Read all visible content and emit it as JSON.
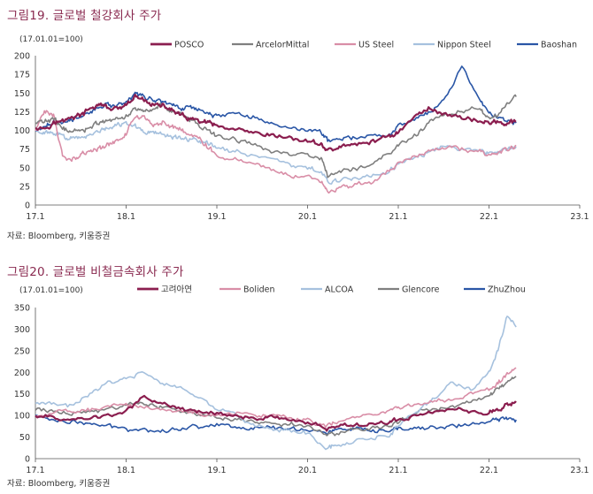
{
  "charts": [
    {
      "fig_title": "그림19. 글로벌 철강회사 주가",
      "base_note": "(17.01.01=100)",
      "source": "자료: Bloomberg, 키움증권"
    },
    {
      "fig_title": "그림20. 글로벌 비철금속회사 주가",
      "base_note": "(17.01.01=100)",
      "source": "자료: Bloomberg, 키움증권"
    }
  ],
  "chart_data": [
    {
      "type": "line",
      "title": "그림19. 글로벌 철강회사 주가",
      "ylabel": "(17.01.01=100)",
      "x_ticks": [
        "17.1",
        "18.1",
        "19.1",
        "20.1",
        "21.1",
        "22.1",
        "23.1"
      ],
      "y_ticks": [
        0,
        25,
        50,
        75,
        100,
        125,
        150,
        175,
        200
      ],
      "ylim": [
        0,
        200
      ],
      "x_range": [
        2017.0,
        2023.0
      ],
      "legend_position": "top-right",
      "series": [
        {
          "name": "POSCO",
          "color": "#8b1e4f",
          "width": 2.2,
          "x": [
            2017.0,
            2017.1,
            2017.2,
            2017.3,
            2017.4,
            2017.5,
            2017.6,
            2017.7,
            2017.8,
            2017.9,
            2018.0,
            2018.1,
            2018.2,
            2018.3,
            2018.4,
            2018.5,
            2018.6,
            2018.7,
            2018.8,
            2018.9,
            2019.0,
            2019.2,
            2019.4,
            2019.6,
            2019.8,
            2020.0,
            2020.15,
            2020.22,
            2020.35,
            2020.5,
            2020.7,
            2020.9,
            2021.0,
            2021.2,
            2021.35,
            2021.5,
            2021.7,
            2021.9,
            2022.0,
            2022.1,
            2022.2,
            2022.3
          ],
          "y": [
            105,
            103,
            110,
            112,
            118,
            120,
            128,
            135,
            130,
            128,
            132,
            145,
            140,
            135,
            132,
            128,
            120,
            115,
            112,
            110,
            105,
            100,
            95,
            92,
            90,
            85,
            82,
            72,
            78,
            80,
            85,
            92,
            98,
            120,
            130,
            122,
            118,
            112,
            110,
            112,
            108,
            112
          ]
        },
        {
          "name": "ArcelorMittal",
          "color": "#7f7f7f",
          "width": 1.6,
          "x": [
            2017.0,
            2017.1,
            2017.2,
            2017.3,
            2017.4,
            2017.5,
            2017.6,
            2017.7,
            2017.8,
            2017.9,
            2018.0,
            2018.1,
            2018.2,
            2018.3,
            2018.4,
            2018.5,
            2018.6,
            2018.7,
            2018.8,
            2018.9,
            2019.0,
            2019.2,
            2019.4,
            2019.6,
            2019.8,
            2020.0,
            2020.15,
            2020.22,
            2020.35,
            2020.5,
            2020.7,
            2020.9,
            2021.0,
            2021.2,
            2021.35,
            2021.5,
            2021.7,
            2021.9,
            2022.0,
            2022.1,
            2022.2,
            2022.3
          ],
          "y": [
            110,
            112,
            115,
            102,
            100,
            98,
            105,
            110,
            112,
            115,
            118,
            130,
            125,
            130,
            135,
            125,
            122,
            115,
            108,
            100,
            92,
            88,
            82,
            72,
            68,
            68,
            62,
            38,
            45,
            48,
            55,
            70,
            80,
            95,
            110,
            120,
            125,
            130,
            115,
            120,
            135,
            145
          ]
        },
        {
          "name": "US Steel",
          "color": "#d98ea7",
          "width": 1.6,
          "x": [
            2017.0,
            2017.1,
            2017.2,
            2017.3,
            2017.4,
            2017.5,
            2017.6,
            2017.7,
            2017.8,
            2017.9,
            2018.0,
            2018.1,
            2018.2,
            2018.3,
            2018.4,
            2018.5,
            2018.6,
            2018.7,
            2018.8,
            2018.9,
            2019.0,
            2019.2,
            2019.4,
            2019.6,
            2019.8,
            2020.0,
            2020.15,
            2020.22,
            2020.35,
            2020.5,
            2020.7,
            2020.9,
            2021.0,
            2021.2,
            2021.35,
            2021.5,
            2021.7,
            2021.9,
            2022.0,
            2022.1,
            2022.2,
            2022.3
          ],
          "y": [
            100,
            125,
            120,
            65,
            62,
            68,
            72,
            75,
            80,
            88,
            95,
            120,
            115,
            108,
            112,
            105,
            102,
            95,
            90,
            78,
            68,
            62,
            55,
            48,
            40,
            38,
            30,
            18,
            22,
            25,
            30,
            45,
            55,
            65,
            72,
            78,
            75,
            72,
            68,
            72,
            75,
            80
          ]
        },
        {
          "name": "Nippon Steel",
          "color": "#a6c1de",
          "width": 1.6,
          "x": [
            2017.0,
            2017.1,
            2017.2,
            2017.3,
            2017.4,
            2017.5,
            2017.6,
            2017.7,
            2017.8,
            2017.9,
            2018.0,
            2018.1,
            2018.2,
            2018.3,
            2018.4,
            2018.5,
            2018.6,
            2018.7,
            2018.8,
            2018.9,
            2019.0,
            2019.2,
            2019.4,
            2019.6,
            2019.8,
            2020.0,
            2020.15,
            2020.22,
            2020.35,
            2020.5,
            2020.7,
            2020.9,
            2021.0,
            2021.2,
            2021.35,
            2021.5,
            2021.7,
            2021.9,
            2022.0,
            2022.1,
            2022.2,
            2022.3
          ],
          "y": [
            100,
            98,
            95,
            92,
            90,
            92,
            95,
            100,
            105,
            108,
            110,
            105,
            100,
            98,
            95,
            92,
            90,
            88,
            85,
            82,
            78,
            72,
            68,
            62,
            55,
            50,
            45,
            30,
            32,
            35,
            38,
            45,
            55,
            65,
            72,
            78,
            75,
            72,
            70,
            72,
            75,
            78
          ]
        },
        {
          "name": "Baoshan",
          "color": "#2a56a6",
          "width": 1.6,
          "x": [
            2017.0,
            2017.1,
            2017.2,
            2017.3,
            2017.4,
            2017.5,
            2017.6,
            2017.7,
            2017.8,
            2017.9,
            2018.0,
            2018.1,
            2018.2,
            2018.3,
            2018.4,
            2018.5,
            2018.6,
            2018.7,
            2018.8,
            2018.9,
            2019.0,
            2019.2,
            2019.4,
            2019.6,
            2019.8,
            2020.0,
            2020.15,
            2020.22,
            2020.35,
            2020.5,
            2020.7,
            2020.9,
            2021.0,
            2021.2,
            2021.35,
            2021.5,
            2021.7,
            2021.9,
            2022.0,
            2022.1,
            2022.2,
            2022.3
          ],
          "y": [
            100,
            105,
            110,
            112,
            115,
            120,
            125,
            130,
            135,
            132,
            140,
            150,
            145,
            140,
            138,
            135,
            130,
            132,
            128,
            122,
            120,
            125,
            118,
            110,
            105,
            100,
            98,
            85,
            88,
            90,
            92,
            95,
            105,
            115,
            125,
            140,
            185,
            140,
            125,
            118,
            112,
            110
          ]
        }
      ]
    },
    {
      "type": "line",
      "title": "그림20. 글로벌 비철금속회사 주가",
      "ylabel": "(17.01.01=100)",
      "x_ticks": [
        "17.1",
        "18.1",
        "19.1",
        "20.1",
        "21.1",
        "22.1",
        "23.1"
      ],
      "y_ticks": [
        0,
        50,
        100,
        150,
        200,
        250,
        300,
        350
      ],
      "ylim": [
        0,
        350
      ],
      "x_range": [
        2017.0,
        2023.0
      ],
      "legend_position": "top-right",
      "series": [
        {
          "name": "고려아연",
          "color": "#8b1e4f",
          "width": 2.2,
          "x": [
            2017.0,
            2017.2,
            2017.4,
            2017.6,
            2017.8,
            2018.0,
            2018.2,
            2018.4,
            2018.6,
            2018.8,
            2019.0,
            2019.2,
            2019.4,
            2019.6,
            2019.8,
            2020.0,
            2020.2,
            2020.3,
            2020.5,
            2020.7,
            2020.9,
            2021.0,
            2021.2,
            2021.4,
            2021.6,
            2021.8,
            2022.0,
            2022.1,
            2022.2,
            2022.3
          ],
          "y": [
            100,
            95,
            90,
            95,
            98,
            110,
            145,
            125,
            115,
            110,
            105,
            100,
            95,
            95,
            90,
            85,
            70,
            75,
            78,
            80,
            85,
            90,
            100,
            110,
            115,
            110,
            105,
            115,
            125,
            130
          ]
        },
        {
          "name": "Boliden",
          "color": "#d98ea7",
          "width": 1.6,
          "x": [
            2017.0,
            2017.2,
            2017.4,
            2017.6,
            2017.8,
            2018.0,
            2018.2,
            2018.4,
            2018.6,
            2018.8,
            2019.0,
            2019.2,
            2019.4,
            2019.6,
            2019.8,
            2020.0,
            2020.2,
            2020.3,
            2020.5,
            2020.7,
            2020.9,
            2021.0,
            2021.2,
            2021.4,
            2021.6,
            2021.8,
            2022.0,
            2022.1,
            2022.2,
            2022.3
          ],
          "y": [
            100,
            105,
            110,
            115,
            120,
            125,
            120,
            115,
            110,
            105,
            100,
            105,
            100,
            98,
            95,
            90,
            75,
            85,
            95,
            105,
            110,
            115,
            125,
            135,
            140,
            150,
            160,
            175,
            195,
            210
          ]
        },
        {
          "name": "ALCOA",
          "color": "#a6c1de",
          "width": 1.6,
          "x": [
            2017.0,
            2017.2,
            2017.4,
            2017.6,
            2017.8,
            2018.0,
            2018.2,
            2018.4,
            2018.6,
            2018.8,
            2019.0,
            2019.2,
            2019.4,
            2019.6,
            2019.8,
            2020.0,
            2020.2,
            2020.3,
            2020.5,
            2020.7,
            2020.9,
            2021.0,
            2021.2,
            2021.4,
            2021.6,
            2021.8,
            2022.0,
            2022.1,
            2022.2,
            2022.3
          ],
          "y": [
            130,
            125,
            120,
            150,
            175,
            185,
            200,
            170,
            165,
            140,
            115,
            105,
            80,
            70,
            65,
            60,
            25,
            30,
            35,
            50,
            55,
            75,
            110,
            140,
            175,
            160,
            200,
            250,
            330,
            305
          ]
        },
        {
          "name": "Glencore",
          "color": "#7f7f7f",
          "width": 1.6,
          "x": [
            2017.0,
            2017.2,
            2017.4,
            2017.6,
            2017.8,
            2018.0,
            2018.2,
            2018.4,
            2018.6,
            2018.8,
            2019.0,
            2019.2,
            2019.4,
            2019.6,
            2019.8,
            2020.0,
            2020.2,
            2020.3,
            2020.5,
            2020.7,
            2020.9,
            2021.0,
            2021.2,
            2021.4,
            2021.6,
            2021.8,
            2022.0,
            2022.1,
            2022.2,
            2022.3
          ],
          "y": [
            115,
            110,
            105,
            110,
            115,
            125,
            130,
            120,
            110,
            100,
            95,
            90,
            85,
            80,
            80,
            75,
            55,
            60,
            65,
            70,
            75,
            85,
            105,
            115,
            120,
            130,
            150,
            160,
            175,
            190
          ]
        },
        {
          "name": "ZhuZhou",
          "color": "#2a56a6",
          "width": 1.6,
          "x": [
            2017.0,
            2017.2,
            2017.4,
            2017.6,
            2017.8,
            2018.0,
            2018.2,
            2018.4,
            2018.6,
            2018.8,
            2019.0,
            2019.2,
            2019.4,
            2019.6,
            2019.8,
            2020.0,
            2020.2,
            2020.3,
            2020.5,
            2020.7,
            2020.9,
            2021.0,
            2021.2,
            2021.4,
            2021.6,
            2021.8,
            2022.0,
            2022.1,
            2022.2,
            2022.3
          ],
          "y": [
            100,
            90,
            85,
            80,
            75,
            70,
            68,
            65,
            70,
            75,
            80,
            75,
            70,
            72,
            70,
            68,
            60,
            65,
            70,
            60,
            65,
            68,
            70,
            72,
            75,
            80,
            85,
            90,
            95,
            90
          ]
        }
      ]
    }
  ]
}
